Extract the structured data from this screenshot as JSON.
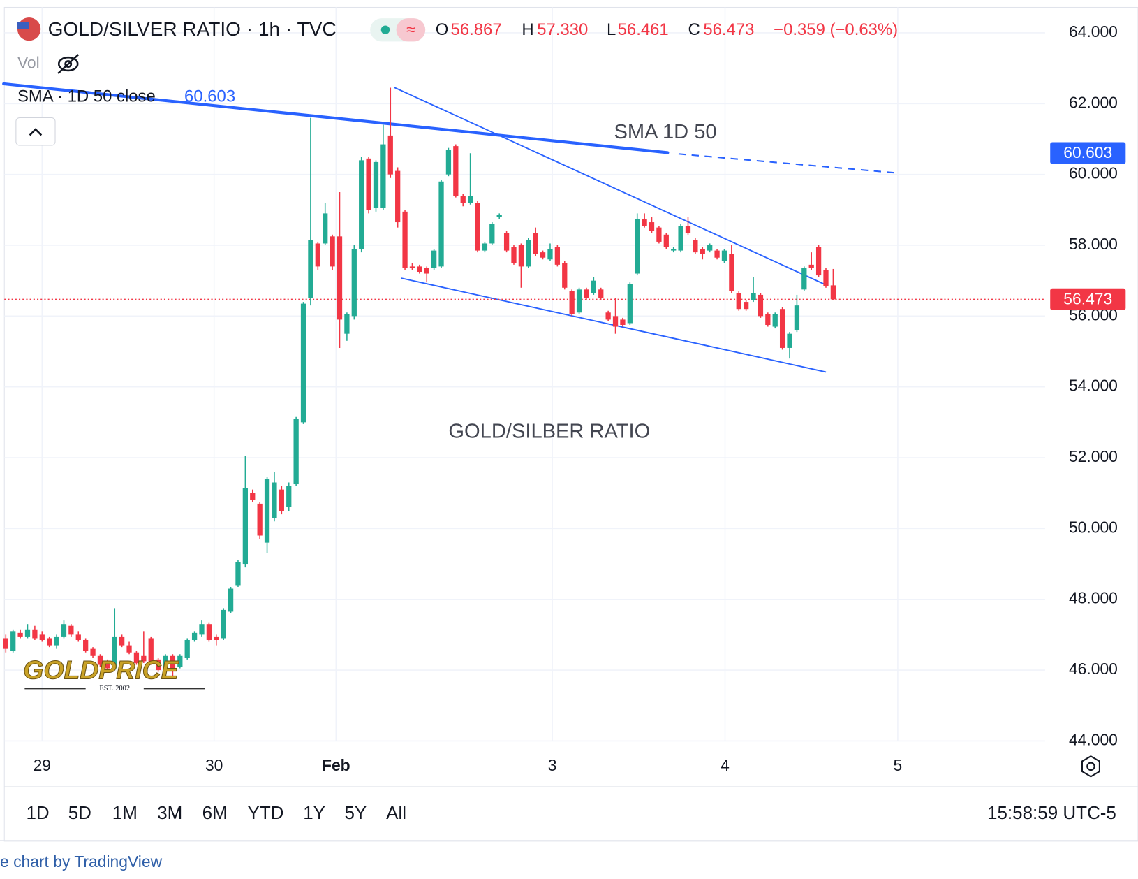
{
  "chart_data": {
    "type": "candlestick",
    "title": "GOLD/SILVER RATIO · 1h · TVC",
    "ohlc_header": {
      "o_label": "O",
      "open": "56.867",
      "h_label": "H",
      "high": "57.330",
      "l_label": "L",
      "low": "56.461",
      "c_label": "C",
      "close": "56.473",
      "change": "−0.359 (−0.63%)"
    },
    "volume_label": "Vol",
    "sma": {
      "name": "SMA · 1D 50 close",
      "last": 60.603,
      "color": "#2962ff",
      "annotation": "SMA 1D 50",
      "x": [
        -0.3,
        91.2
      ],
      "values": [
        62.56,
        60.615
      ],
      "projection_x": [
        92.7,
        122.9
      ],
      "projection_values": [
        60.58,
        60.04
      ]
    },
    "annotation": "GOLD/SILBER RATIO",
    "trendlines": [
      {
        "x": [
          53.5,
          113
        ],
        "values": [
          62.46,
          56.88
        ]
      },
      {
        "x": [
          54.5,
          113
        ],
        "values": [
          57.07,
          54.42
        ]
      }
    ],
    "price_tag": 56.473,
    "up_color": "#22ab94",
    "down_color": "#f23645",
    "xlim": [
      -0.8,
      143.2
    ],
    "ylim": [
      44,
      64.72
    ],
    "xticks": [
      {
        "value": 5,
        "label": "29"
      },
      {
        "value": 28.7,
        "label": "30"
      },
      {
        "value": 45.5,
        "label": "Feb"
      },
      {
        "value": 75.3,
        "label": "3"
      },
      {
        "value": 99.1,
        "label": "4"
      },
      {
        "value": 122.9,
        "label": "5"
      }
    ],
    "yticks": [
      {
        "value": 44,
        "label": "44.000"
      },
      {
        "value": 46,
        "label": "46.000"
      },
      {
        "value": 48,
        "label": "48.000"
      },
      {
        "value": 50,
        "label": "50.000"
      },
      {
        "value": 52,
        "label": "52.000"
      },
      {
        "value": 54,
        "label": "54.000"
      },
      {
        "value": 56,
        "label": "56.000"
      },
      {
        "value": 58,
        "label": "58.000"
      },
      {
        "value": 60,
        "label": "60.000"
      },
      {
        "value": 62,
        "label": "62.000"
      },
      {
        "value": 64,
        "label": "64.000"
      }
    ],
    "grid": true,
    "x": [
      0,
      1,
      2,
      3,
      4,
      5,
      6,
      7,
      8,
      9,
      10,
      11,
      12,
      13,
      14,
      15,
      16,
      17,
      18,
      19,
      20,
      21,
      22,
      23,
      24,
      25,
      26,
      27,
      28,
      29,
      30,
      31,
      32,
      33,
      34,
      35,
      36,
      37,
      38,
      39,
      40,
      41,
      42,
      43,
      44,
      45,
      46,
      47,
      48,
      49,
      50,
      51,
      52,
      53,
      54,
      55,
      56,
      57,
      58,
      59,
      60,
      61,
      62,
      63,
      64,
      65,
      66,
      67,
      68,
      69,
      70,
      71,
      72,
      73,
      74,
      75,
      76,
      77,
      78,
      79,
      80,
      81,
      82,
      83,
      84,
      85,
      86,
      87,
      88,
      89,
      90,
      91,
      92,
      93,
      94,
      95,
      96,
      97,
      98,
      99,
      100,
      101,
      102,
      103,
      104,
      105,
      106,
      107,
      108,
      109,
      110,
      111,
      112,
      113,
      114
    ],
    "values": [
      [
        46.9,
        47.0,
        46.5,
        46.6
      ],
      [
        46.55,
        47.15,
        46.5,
        47.1
      ],
      [
        47.05,
        47.15,
        46.9,
        46.95
      ],
      [
        46.95,
        47.3,
        46.9,
        47.15
      ],
      [
        47.15,
        47.25,
        46.85,
        46.9
      ],
      [
        47.0,
        47.1,
        46.8,
        46.85
      ],
      [
        46.9,
        46.95,
        46.65,
        46.7
      ],
      [
        46.7,
        47.0,
        46.6,
        46.95
      ],
      [
        46.95,
        47.4,
        46.9,
        47.3
      ],
      [
        47.25,
        47.3,
        46.95,
        47.0
      ],
      [
        47.0,
        47.1,
        46.8,
        46.85
      ],
      [
        46.85,
        46.9,
        46.5,
        46.55
      ],
      [
        46.6,
        46.65,
        46.35,
        46.4
      ],
      [
        46.4,
        46.45,
        46.1,
        46.15
      ],
      [
        46.2,
        46.3,
        46.0,
        46.05
      ],
      [
        46.05,
        47.75,
        46.0,
        46.95
      ],
      [
        46.95,
        47.0,
        46.65,
        46.7
      ],
      [
        46.7,
        46.8,
        46.45,
        46.5
      ],
      [
        46.5,
        46.55,
        46.15,
        46.2
      ],
      [
        46.4,
        47.1,
        46.2,
        46.25
      ],
      [
        46.9,
        46.95,
        46.15,
        46.2
      ],
      [
        46.3,
        46.35,
        45.95,
        46.0
      ],
      [
        46.1,
        46.45,
        46.05,
        46.4
      ],
      [
        46.4,
        46.45,
        45.8,
        46.05
      ],
      [
        46.1,
        46.45,
        46.05,
        46.4
      ],
      [
        46.35,
        46.9,
        46.3,
        46.85
      ],
      [
        46.85,
        47.1,
        46.8,
        47.05
      ],
      [
        47.0,
        47.4,
        46.95,
        47.3
      ],
      [
        47.3,
        47.35,
        46.8,
        46.85
      ],
      [
        46.95,
        47.0,
        46.7,
        46.85
      ],
      [
        46.9,
        47.75,
        46.85,
        47.7
      ],
      [
        47.65,
        48.35,
        47.6,
        48.3
      ],
      [
        48.4,
        49.1,
        48.35,
        49.05
      ],
      [
        49.0,
        52.05,
        48.9,
        51.15
      ],
      [
        51.0,
        51.1,
        50.75,
        50.8
      ],
      [
        50.7,
        50.75,
        49.7,
        49.8
      ],
      [
        49.6,
        51.45,
        49.3,
        51.4
      ],
      [
        50.3,
        51.6,
        50.2,
        51.3
      ],
      [
        51.1,
        51.2,
        50.4,
        50.5
      ],
      [
        50.6,
        51.3,
        50.5,
        51.2
      ],
      [
        51.25,
        53.15,
        51.2,
        53.1
      ],
      [
        53.0,
        56.4,
        52.95,
        56.35
      ],
      [
        56.5,
        61.6,
        56.3,
        58.15
      ],
      [
        58.05,
        58.1,
        57.3,
        57.4
      ],
      [
        58.05,
        59.2,
        58.0,
        58.9
      ],
      [
        58.25,
        58.3,
        57.3,
        57.4
      ],
      [
        58.25,
        59.5,
        55.1,
        55.9
      ],
      [
        55.5,
        56.1,
        55.3,
        56.05
      ],
      [
        56.0,
        58.0,
        55.9,
        57.9
      ],
      [
        57.9,
        60.5,
        57.8,
        60.4
      ],
      [
        60.45,
        60.5,
        58.9,
        59.0
      ],
      [
        59.05,
        60.4,
        58.95,
        60.35
      ],
      [
        59.05,
        61.4,
        59.0,
        60.85
      ],
      [
        61.1,
        62.45,
        59.9,
        60.0
      ],
      [
        60.1,
        60.2,
        58.5,
        58.65
      ],
      [
        58.95,
        59.0,
        57.3,
        57.35
      ],
      [
        57.4,
        57.5,
        57.3,
        57.35
      ],
      [
        57.4,
        57.45,
        57.2,
        57.25
      ],
      [
        57.35,
        57.4,
        56.95,
        57.2
      ],
      [
        57.35,
        57.9,
        57.3,
        57.85
      ],
      [
        57.4,
        59.85,
        57.35,
        59.8
      ],
      [
        60.0,
        60.75,
        59.95,
        60.7
      ],
      [
        60.8,
        60.85,
        59.35,
        59.4
      ],
      [
        59.4,
        59.45,
        59.1,
        59.2
      ],
      [
        59.2,
        60.6,
        59.15,
        59.4
      ],
      [
        59.2,
        59.25,
        57.8,
        57.85
      ],
      [
        57.85,
        58.1,
        57.8,
        58.05
      ],
      [
        58.05,
        58.65,
        58.0,
        58.6
      ],
      [
        58.8,
        58.9,
        58.75,
        58.85
      ],
      [
        58.35,
        58.4,
        57.8,
        57.85
      ],
      [
        57.95,
        58.0,
        57.45,
        57.5
      ],
      [
        58.0,
        58.05,
        56.8,
        57.4
      ],
      [
        57.4,
        58.2,
        57.35,
        58.15
      ],
      [
        58.35,
        58.5,
        57.7,
        57.75
      ],
      [
        57.8,
        57.85,
        57.6,
        57.65
      ],
      [
        57.6,
        58.05,
        57.55,
        57.9
      ],
      [
        57.95,
        58.0,
        57.4,
        57.45
      ],
      [
        57.5,
        57.55,
        56.75,
        56.8
      ],
      [
        56.7,
        56.75,
        56.0,
        56.05
      ],
      [
        56.1,
        56.8,
        56.05,
        56.75
      ],
      [
        56.75,
        56.8,
        56.45,
        56.5
      ],
      [
        56.65,
        57.1,
        56.6,
        57.0
      ],
      [
        56.75,
        56.8,
        56.45,
        56.5
      ],
      [
        56.1,
        56.15,
        55.85,
        55.9
      ],
      [
        56.0,
        56.5,
        55.5,
        55.7
      ],
      [
        55.9,
        55.95,
        55.7,
        55.75
      ],
      [
        55.8,
        56.95,
        55.75,
        56.9
      ],
      [
        57.2,
        58.9,
        57.15,
        58.75
      ],
      [
        58.75,
        58.9,
        58.5,
        58.55
      ],
      [
        58.65,
        58.8,
        58.35,
        58.4
      ],
      [
        58.5,
        58.55,
        58.05,
        58.1
      ],
      [
        58.3,
        58.35,
        57.9,
        57.95
      ],
      [
        57.85,
        57.95,
        57.8,
        57.9
      ],
      [
        57.85,
        58.6,
        57.8,
        58.55
      ],
      [
        58.55,
        58.8,
        58.3,
        58.35
      ],
      [
        58.15,
        58.2,
        57.75,
        57.8
      ],
      [
        57.9,
        57.95,
        57.6,
        57.75
      ],
      [
        57.85,
        58.05,
        57.8,
        58.0
      ],
      [
        57.85,
        57.9,
        57.6,
        57.65
      ],
      [
        57.55,
        57.9,
        57.5,
        57.85
      ],
      [
        57.75,
        58.0,
        56.65,
        56.7
      ],
      [
        56.65,
        56.7,
        56.15,
        56.2
      ],
      [
        56.4,
        56.45,
        56.15,
        56.2
      ],
      [
        56.45,
        57.1,
        56.4,
        56.65
      ],
      [
        56.6,
        56.65,
        55.95,
        56.0
      ],
      [
        56.05,
        56.1,
        55.7,
        55.75
      ],
      [
        55.7,
        56.1,
        55.65,
        56.05
      ],
      [
        56.2,
        56.25,
        55.05,
        55.1
      ],
      [
        55.1,
        55.55,
        54.8,
        55.5
      ],
      [
        55.6,
        56.6,
        55.55,
        56.3
      ],
      [
        56.75,
        57.4,
        56.7,
        57.35
      ],
      [
        57.45,
        57.8,
        57.3,
        57.35
      ],
      [
        57.95,
        58.0,
        57.1,
        57.15
      ],
      [
        57.3,
        57.35,
        56.8,
        56.85
      ],
      [
        56.867,
        57.33,
        56.461,
        56.473
      ]
    ]
  },
  "toolbar": {
    "ranges": [
      "1D",
      "5D",
      "1M",
      "3M",
      "6M",
      "YTD",
      "1Y",
      "5Y",
      "All"
    ],
    "clock": "15:58:59 UTC-5"
  },
  "footer": "e chart by TradingView",
  "logo": {
    "name": "GOLDPRICE",
    "since": "EST. 2002"
  }
}
